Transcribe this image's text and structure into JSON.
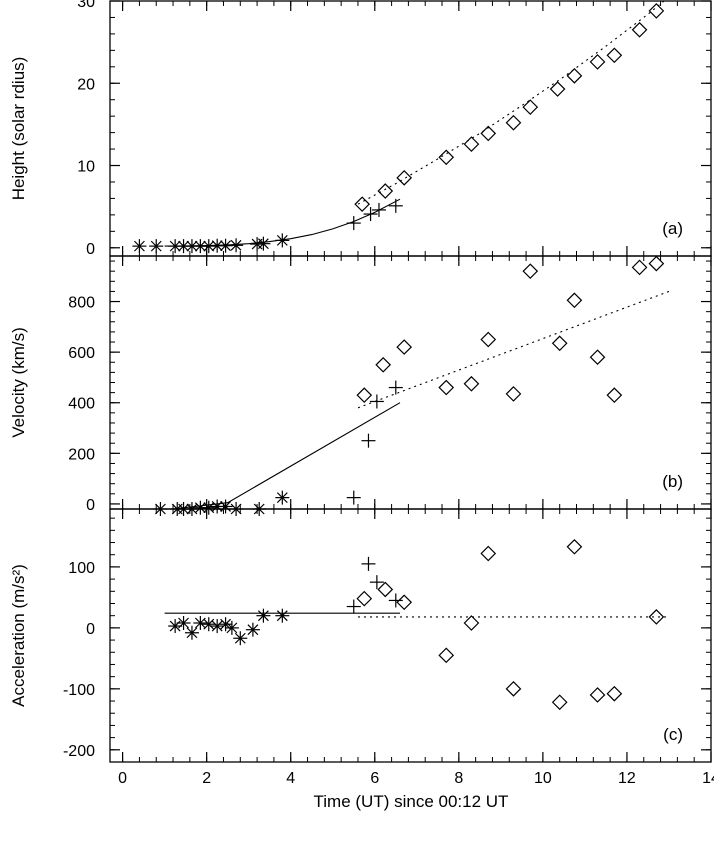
{
  "figure": {
    "xlabel": "Time (UT) since 00:12 UT",
    "xlim": [
      -0.3,
      14
    ],
    "xticks": [
      0,
      2,
      4,
      6,
      8,
      10,
      12,
      14
    ],
    "xtick_labels": [
      "0",
      "2",
      "4",
      "6",
      "8",
      "10",
      "12",
      "14"
    ]
  },
  "chart_data": [
    {
      "type": "scatter",
      "panel_label": "(a)",
      "ylabel": "Height (solar rdius)",
      "ylim": [
        -1,
        30
      ],
      "yticks": [
        0,
        10,
        20,
        30
      ],
      "ytick_labels": [
        "0",
        "10",
        "20",
        "30"
      ],
      "series": [
        {
          "marker": "asterisk",
          "x": [
            0.4,
            0.8,
            1.25,
            1.45,
            1.65,
            1.85,
            2.05,
            2.25,
            2.45,
            2.7,
            3.2,
            3.35,
            3.8
          ],
          "y": [
            0.2,
            0.2,
            0.2,
            0.2,
            0.2,
            0.2,
            0.2,
            0.25,
            0.25,
            0.3,
            0.45,
            0.5,
            0.9
          ]
        },
        {
          "marker": "plus",
          "x": [
            5.5,
            5.9,
            6.1,
            6.5
          ],
          "y": [
            3.0,
            4.1,
            4.6,
            5.1
          ]
        },
        {
          "marker": "diamond",
          "x": [
            5.7,
            6.25,
            6.7,
            7.7,
            8.3,
            8.7,
            9.3,
            9.7,
            10.35,
            10.75,
            11.3,
            11.7,
            12.3,
            12.7
          ],
          "y": [
            5.3,
            6.9,
            8.5,
            11.0,
            12.6,
            13.9,
            15.2,
            17.1,
            19.3,
            20.9,
            22.6,
            23.4,
            26.5,
            28.8
          ]
        }
      ],
      "fits": [
        {
          "style": "solid",
          "x": [
            1.0,
            1.5,
            2.0,
            2.5,
            3.0,
            3.5,
            4.0,
            4.5,
            5.0,
            5.5,
            6.0,
            6.6
          ],
          "y": [
            0.2,
            0.23,
            0.27,
            0.35,
            0.5,
            0.75,
            1.1,
            1.6,
            2.3,
            3.2,
            4.3,
            5.9
          ]
        },
        {
          "style": "dotted",
          "x": [
            5.6,
            6.5,
            7.5,
            8.5,
            9.5,
            10.5,
            11.5,
            12.5,
            13.0
          ],
          "y": [
            5.3,
            7.8,
            10.8,
            13.9,
            17.3,
            20.8,
            24.5,
            28.4,
            30.5
          ]
        }
      ]
    },
    {
      "type": "scatter",
      "panel_label": "(b)",
      "ylabel": "Velocity (km/s)",
      "ylim": [
        -20,
        980
      ],
      "yticks": [
        0,
        200,
        400,
        600,
        800
      ],
      "ytick_labels": [
        "0",
        "200",
        "400",
        "600",
        "800"
      ],
      "series": [
        {
          "marker": "asterisk",
          "x": [
            0.9,
            1.3,
            1.45,
            1.65,
            1.85,
            2.05,
            2.25,
            2.45,
            2.7,
            3.25,
            3.8
          ],
          "y": [
            -20,
            -20,
            -20,
            -20,
            -15,
            -15,
            -10,
            -10,
            -20,
            -20,
            25
          ]
        },
        {
          "marker": "plus",
          "x": [
            5.5,
            5.85,
            6.05,
            6.5
          ],
          "y": [
            25,
            250,
            405,
            460
          ]
        },
        {
          "marker": "diamond",
          "x": [
            5.75,
            6.2,
            6.7,
            7.7,
            8.3,
            8.7,
            9.3,
            9.7,
            10.4,
            10.75,
            11.3,
            11.7,
            12.3,
            12.7
          ],
          "y": [
            430,
            550,
            620,
            460,
            475,
            650,
            435,
            920,
            635,
            805,
            580,
            430,
            935,
            950
          ]
        }
      ],
      "fits": [
        {
          "style": "solid",
          "x": [
            1.2,
            2.5,
            6.6
          ],
          "y": [
            -20,
            5,
            400
          ]
        },
        {
          "style": "dotted",
          "x": [
            5.6,
            13.0
          ],
          "y": [
            380,
            840
          ]
        }
      ]
    },
    {
      "type": "scatter",
      "panel_label": "(c)",
      "ylabel": "Acceleration (m/s²)",
      "ylim": [
        -220,
        195
      ],
      "yticks": [
        -200,
        -100,
        0,
        100
      ],
      "ytick_labels": [
        "-200",
        "-100",
        "0",
        "100"
      ],
      "series": [
        {
          "marker": "asterisk",
          "x": [
            1.25,
            1.45,
            1.65,
            1.85,
            2.05,
            2.25,
            2.45,
            2.6,
            2.8,
            3.1,
            3.35,
            3.8
          ],
          "y": [
            3,
            8,
            -8,
            8,
            6,
            3,
            6,
            0,
            -17,
            -3,
            20,
            20
          ]
        },
        {
          "marker": "plus",
          "x": [
            5.5,
            5.85,
            6.05,
            6.5
          ],
          "y": [
            35,
            105,
            75,
            45
          ]
        },
        {
          "marker": "diamond",
          "x": [
            5.75,
            6.25,
            6.7,
            7.7,
            8.3,
            8.7,
            9.3,
            10.4,
            10.75,
            11.3,
            11.7,
            12.7
          ],
          "y": [
            48,
            63,
            42,
            -45,
            8,
            122,
            -100,
            -122,
            133,
            -110,
            -108,
            18
          ]
        }
      ],
      "fits": [
        {
          "style": "solid",
          "x": [
            1.0,
            6.6
          ],
          "y": [
            24,
            24
          ]
        },
        {
          "style": "dotted",
          "x": [
            5.6,
            13.0
          ],
          "y": [
            18,
            18
          ]
        }
      ]
    }
  ]
}
